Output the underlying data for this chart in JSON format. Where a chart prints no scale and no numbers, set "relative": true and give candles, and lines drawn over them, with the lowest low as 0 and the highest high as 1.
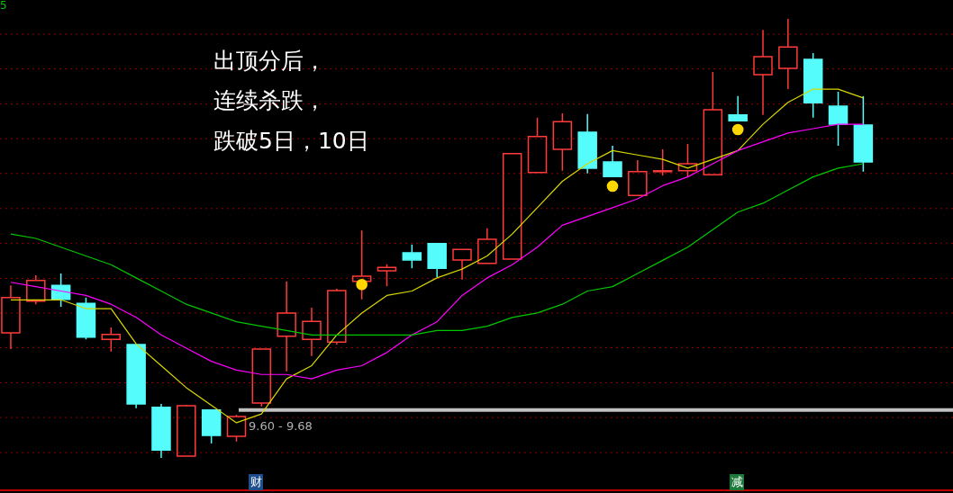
{
  "chart_data": {
    "type": "candlestick",
    "relative": true,
    "categories": [
      null,
      null,
      null,
      null,
      null,
      null,
      null,
      null,
      null,
      null,
      null,
      null,
      null,
      null,
      null,
      null,
      null,
      null,
      null,
      null,
      null,
      null,
      null,
      null,
      null,
      null,
      null,
      null,
      null,
      null,
      null,
      null,
      null,
      null,
      null
    ],
    "ohlc": [
      [
        0.285,
        0.393,
        0.248,
        0.365
      ],
      [
        0.357,
        0.416,
        0.35,
        0.404
      ],
      [
        0.393,
        0.42,
        0.344,
        0.361
      ],
      [
        0.352,
        0.365,
        0.27,
        0.275
      ],
      [
        0.27,
        0.297,
        0.242,
        0.281
      ],
      [
        0.258,
        0.258,
        0.113,
        0.123
      ],
      [
        0.115,
        0.123,
        0,
        0.018
      ],
      [
        0.004,
        0.121,
        0.004,
        0.119
      ],
      [
        0.109,
        0.109,
        0.033,
        0.051
      ],
      [
        0.049,
        0.098,
        0.037,
        0.094
      ],
      [
        0.125,
        0.248,
        0.117,
        0.248
      ],
      [
        0.277,
        0.402,
        0.197,
        0.33
      ],
      [
        0.27,
        0.342,
        0.232,
        0.311
      ],
      [
        0.264,
        0.385,
        0.258,
        0.381
      ],
      [
        0.402,
        0.518,
        0.361,
        0.414
      ],
      [
        0.426,
        0.441,
        0.391,
        0.434
      ],
      [
        0.467,
        0.486,
        0.432,
        0.451
      ],
      [
        0.488,
        0.488,
        0.412,
        0.432
      ],
      [
        0.451,
        0.475,
        0.406,
        0.475
      ],
      [
        0.443,
        0.523,
        0.443,
        0.498
      ],
      [
        0.453,
        0.693,
        0.453,
        0.693
      ],
      [
        0.65,
        0.775,
        0.65,
        0.732
      ],
      [
        0.703,
        0.785,
        0.654,
        0.766
      ],
      [
        0.742,
        0.783,
        0.648,
        0.66
      ],
      [
        0.674,
        0.711,
        0.641,
        0.641
      ],
      [
        0.598,
        0.678,
        0.598,
        0.652
      ],
      [
        0.652,
        0.703,
        0.643,
        0.654
      ],
      [
        0.654,
        0.715,
        0.639,
        0.67
      ],
      [
        0.645,
        0.879,
        0.645,
        0.793
      ],
      [
        0.781,
        0.824,
        0.768,
        0.768
      ],
      [
        0.873,
        0.975,
        0.781,
        0.914
      ],
      [
        0.887,
        1,
        0.84,
        0.936
      ],
      [
        0.908,
        0.922,
        0.775,
        0.809
      ],
      [
        0.801,
        0.834,
        0.711,
        0.76
      ],
      [
        0.758,
        0.824,
        0.652,
        0.674
      ]
    ],
    "colors": [
      "#ff3a3a",
      "#ff3a3a",
      "#54fcfc",
      "#54fcfc",
      "#ff3a3a",
      "#54fcfc",
      "#54fcfc",
      "#ff3a3a",
      "#54fcfc",
      "#ff3a3a",
      "#ff3a3a",
      "#ff3a3a",
      "#ff3a3a",
      "#ff3a3a",
      "#ff3a3a",
      "#ff3a3a",
      "#54fcfc",
      "#54fcfc",
      "#ff3a3a",
      "#ff3a3a",
      "#ff3a3a",
      "#ff3a3a",
      "#ff3a3a",
      "#54fcfc",
      "#54fcfc",
      "#ff3a3a",
      "#ff3a3a",
      "#ff3a3a",
      "#ff3a3a",
      "#54fcfc",
      "#ff3a3a",
      "#ff3a3a",
      "#54fcfc",
      "#54fcfc",
      "#54fcfc"
    ],
    "series": [
      {
        "type": "line",
        "color": "#d8d800",
        "values": [
          0.36,
          0.36,
          0.36,
          0.34,
          0.34,
          0.26,
          0.21,
          0.16,
          0.12,
          0.08,
          0.1,
          0.18,
          0.21,
          0.28,
          0.33,
          0.37,
          0.38,
          0.41,
          0.43,
          0.46,
          0.51,
          0.57,
          0.63,
          0.67,
          0.7,
          0.69,
          0.68,
          0.66,
          0.68,
          0.7,
          0.76,
          0.81,
          0.84,
          0.84,
          0.82
        ]
      },
      {
        "type": "line",
        "color": "#ff00ff",
        "values": [
          0.4,
          0.39,
          0.38,
          0.37,
          0.35,
          0.32,
          0.28,
          0.25,
          0.22,
          0.2,
          0.19,
          0.19,
          0.18,
          0.2,
          0.21,
          0.24,
          0.28,
          0.31,
          0.37,
          0.41,
          0.44,
          0.48,
          0.53,
          0.55,
          0.57,
          0.59,
          0.62,
          0.64,
          0.67,
          0.7,
          0.72,
          0.74,
          0.75,
          0.76,
          0.76
        ]
      },
      {
        "type": "line",
        "color": "#00c800",
        "values": [
          0.51,
          0.5,
          0.48,
          0.46,
          0.44,
          0.41,
          0.38,
          0.35,
          0.33,
          0.31,
          0.3,
          0.29,
          0.28,
          0.28,
          0.28,
          0.28,
          0.28,
          0.29,
          0.29,
          0.3,
          0.32,
          0.33,
          0.35,
          0.38,
          0.39,
          0.42,
          0.45,
          0.48,
          0.52,
          0.56,
          0.58,
          0.61,
          0.64,
          0.66,
          0.67
        ]
      },
      {
        "type": "scatter",
        "marker": "circle",
        "color": "#ffd700",
        "values": [
          null,
          null,
          null,
          null,
          null,
          null,
          null,
          null,
          null,
          null,
          null,
          null,
          null,
          null,
          0.395,
          null,
          null,
          null,
          null,
          null,
          null,
          null,
          null,
          null,
          0.619,
          null,
          null,
          null,
          null,
          0.748,
          null,
          null,
          null,
          null,
          null
        ]
      }
    ],
    "ref_lines": [
      {
        "axis": "y",
        "value": 0.109,
        "color": "#c0c0c0",
        "line_style": "solid"
      },
      {
        "axis": "y",
        "value": 0.965,
        "color": "#8b0000",
        "line_style": "dotted"
      },
      {
        "axis": "y",
        "value": 0.886,
        "color": "#8b0000",
        "line_style": "dotted"
      },
      {
        "axis": "y",
        "value": 0.806,
        "color": "#8b0000",
        "line_style": "dotted"
      },
      {
        "axis": "y",
        "value": 0.727,
        "color": "#8b0000",
        "line_style": "dotted"
      },
      {
        "axis": "y",
        "value": 0.648,
        "color": "#8b0000",
        "line_style": "dotted"
      },
      {
        "axis": "y",
        "value": 0.568,
        "color": "#8b0000",
        "line_style": "dotted"
      },
      {
        "axis": "y",
        "value": 0.489,
        "color": "#8b0000",
        "line_style": "dotted"
      },
      {
        "axis": "y",
        "value": 0.409,
        "color": "#8b0000",
        "line_style": "dotted"
      },
      {
        "axis": "y",
        "value": 0.33,
        "color": "#8b0000",
        "line_style": "dotted"
      },
      {
        "axis": "y",
        "value": 0.251,
        "color": "#8b0000",
        "line_style": "dotted"
      },
      {
        "axis": "y",
        "value": 0.171,
        "color": "#8b0000",
        "line_style": "dotted"
      },
      {
        "axis": "y",
        "value": 0.092,
        "color": "#8b0000",
        "line_style": "dotted"
      },
      {
        "axis": "y",
        "value": 0.012,
        "color": "#8b0000",
        "line_style": "dotted"
      }
    ],
    "annotations": [
      "出顶分后，",
      "连续杀跌，",
      "跌破5日，10日",
      "9.60 - 9.68",
      "财",
      "减",
      "5"
    ]
  }
}
